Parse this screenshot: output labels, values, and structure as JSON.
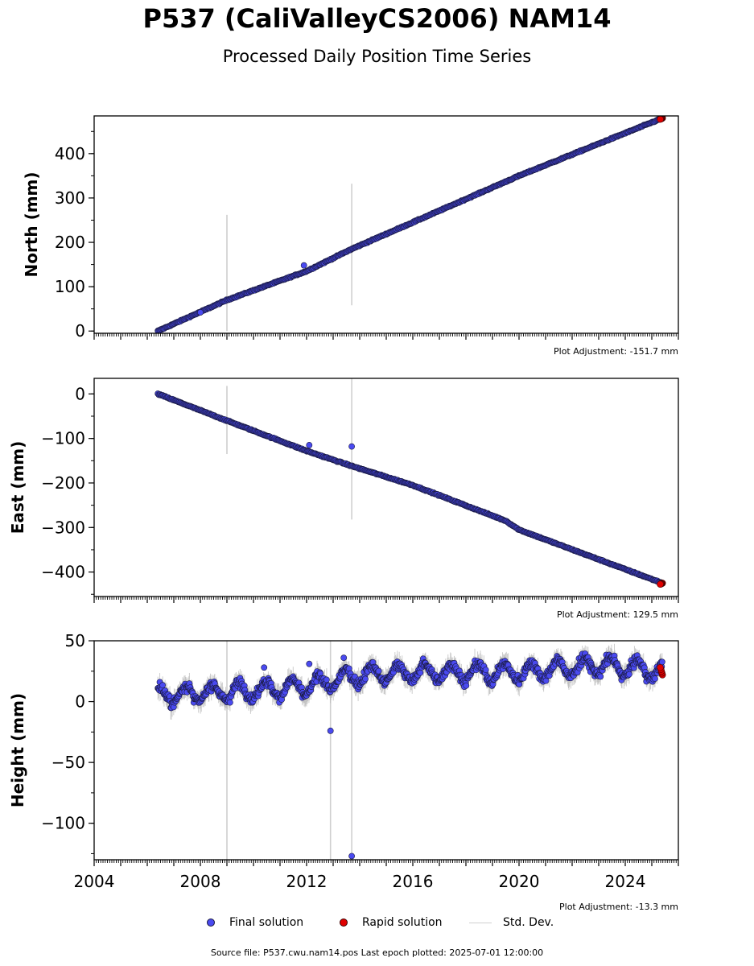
{
  "title": "P537 (CaliValleyCS2006) NAM14",
  "subtitle": "Processed Daily Position Time Series",
  "footer": "Source file: P537.cwu.nam14.pos  Last epoch plotted: 2025-07-01 12:00:00",
  "legend": {
    "final": "Final solution",
    "rapid": "Rapid solution",
    "std": "Std. Dev."
  },
  "colors": {
    "final": "#4a4af0",
    "final_edge": "#1a1a40",
    "rapid": "#e00000",
    "std": "#cfcfcf"
  },
  "chart_data": [
    {
      "type": "scatter",
      "ylabel": "North (mm)",
      "adjustment": "Plot Adjustment: -151.7 mm",
      "xlim": [
        2004.0,
        2026.0
      ],
      "ylim": [
        -5,
        485
      ],
      "yticks": [
        0,
        100,
        200,
        300,
        400
      ],
      "yticklabels": [
        "0",
        "100",
        "200",
        "300",
        "400"
      ],
      "start": 2006.4,
      "end": 2025.4,
      "trend": [
        [
          2006.4,
          0
        ],
        [
          2009.0,
          70
        ],
        [
          2012.0,
          135
        ],
        [
          2013.7,
          185
        ],
        [
          2016.0,
          245
        ],
        [
          2020.0,
          350
        ],
        [
          2025.4,
          480
        ]
      ],
      "noise": 2,
      "seasonal": 0,
      "std_bars": [
        [
          2009.0,
          0,
          262
        ],
        [
          2013.7,
          58,
          332
        ]
      ],
      "outliers": [
        [
          2011.9,
          148
        ],
        [
          2008.0,
          42
        ]
      ],
      "rapid_end": [
        2025.4,
        480
      ]
    },
    {
      "type": "scatter",
      "ylabel": "East (mm)",
      "adjustment": "Plot Adjustment: 129.5 mm",
      "xlim": [
        2004.0,
        2026.0
      ],
      "ylim": [
        -455,
        35
      ],
      "yticks": [
        0,
        -100,
        -200,
        -300,
        -400
      ],
      "yticklabels": [
        "0",
        "−100",
        "−200",
        "−300",
        "−400"
      ],
      "start": 2006.4,
      "end": 2025.4,
      "trend": [
        [
          2006.4,
          0
        ],
        [
          2009.0,
          -60
        ],
        [
          2012.0,
          -128
        ],
        [
          2013.0,
          -148
        ],
        [
          2013.7,
          -162
        ],
        [
          2016.0,
          -205
        ],
        [
          2019.5,
          -285
        ],
        [
          2020.0,
          -305
        ],
        [
          2025.4,
          -425
        ]
      ],
      "noise": 2,
      "seasonal": 0,
      "std_bars": [
        [
          2009.0,
          -135,
          18
        ],
        [
          2013.7,
          -282,
          38
        ]
      ],
      "outliers": [
        [
          2013.7,
          -118
        ],
        [
          2012.1,
          -115
        ]
      ],
      "rapid_end": [
        2025.4,
        -425
      ]
    },
    {
      "type": "scatter",
      "ylabel": "Height (mm)",
      "adjustment": "Plot Adjustment: -13.3 mm",
      "xlim": [
        2004.0,
        2026.0
      ],
      "ylim": [
        -130,
        50
      ],
      "yticks": [
        50,
        0,
        -50,
        -100
      ],
      "yticklabels": [
        "50",
        "0",
        "−50",
        "−100"
      ],
      "xticks": [
        2004,
        2008,
        2012,
        2016,
        2020,
        2024
      ],
      "xticklabels": [
        "2004",
        "2008",
        "2012",
        "2016",
        "2020",
        "2024"
      ],
      "start": 2006.4,
      "end": 2025.4,
      "trend": [
        [
          2006.4,
          5
        ],
        [
          2009.0,
          8
        ],
        [
          2012.0,
          12
        ],
        [
          2014.0,
          22
        ],
        [
          2016.0,
          24
        ],
        [
          2020.0,
          24
        ],
        [
          2023.0,
          30
        ],
        [
          2025.4,
          25
        ]
      ],
      "noise": 6,
      "seasonal": 7,
      "std_bars": [
        [
          2009.0,
          -130,
          50
        ],
        [
          2012.9,
          -130,
          50
        ],
        [
          2013.7,
          -130,
          50
        ]
      ],
      "outliers": [
        [
          2012.9,
          -24
        ],
        [
          2013.7,
          -127
        ],
        [
          2013.4,
          36
        ],
        [
          2010.4,
          28
        ],
        [
          2012.1,
          31
        ]
      ],
      "rapid_end": [
        2025.4,
        25
      ]
    }
  ]
}
